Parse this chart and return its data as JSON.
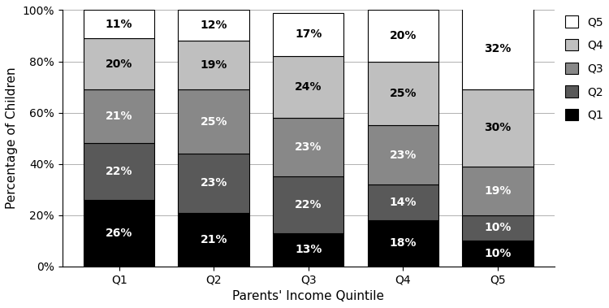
{
  "categories": [
    "Q1",
    "Q2",
    "Q3",
    "Q4",
    "Q5"
  ],
  "series": {
    "Q1": [
      26,
      21,
      13,
      18,
      10
    ],
    "Q2": [
      22,
      23,
      22,
      14,
      10
    ],
    "Q3": [
      21,
      25,
      23,
      23,
      19
    ],
    "Q4": [
      20,
      19,
      24,
      25,
      30
    ],
    "Q5": [
      11,
      12,
      17,
      20,
      32
    ]
  },
  "colors": {
    "Q1": "#000000",
    "Q2": "#595959",
    "Q3": "#888888",
    "Q4": "#bfbfbf",
    "Q5": "#ffffff"
  },
  "text_colors": {
    "Q1": "#ffffff",
    "Q2": "#ffffff",
    "Q3": "#ffffff",
    "Q4": "#000000",
    "Q5": "#000000"
  },
  "xlabel": "Parents' Income Quintile",
  "ylabel": "Percentage of Children",
  "yticks": [
    0,
    20,
    40,
    60,
    80,
    100
  ],
  "ytick_labels": [
    "0%",
    "20%",
    "40%",
    "60%",
    "80%",
    "100%"
  ],
  "bar_width": 0.75,
  "legend_order": [
    "Q5",
    "Q4",
    "Q3",
    "Q2",
    "Q1"
  ],
  "font_size": 10,
  "label_font_size": 11
}
